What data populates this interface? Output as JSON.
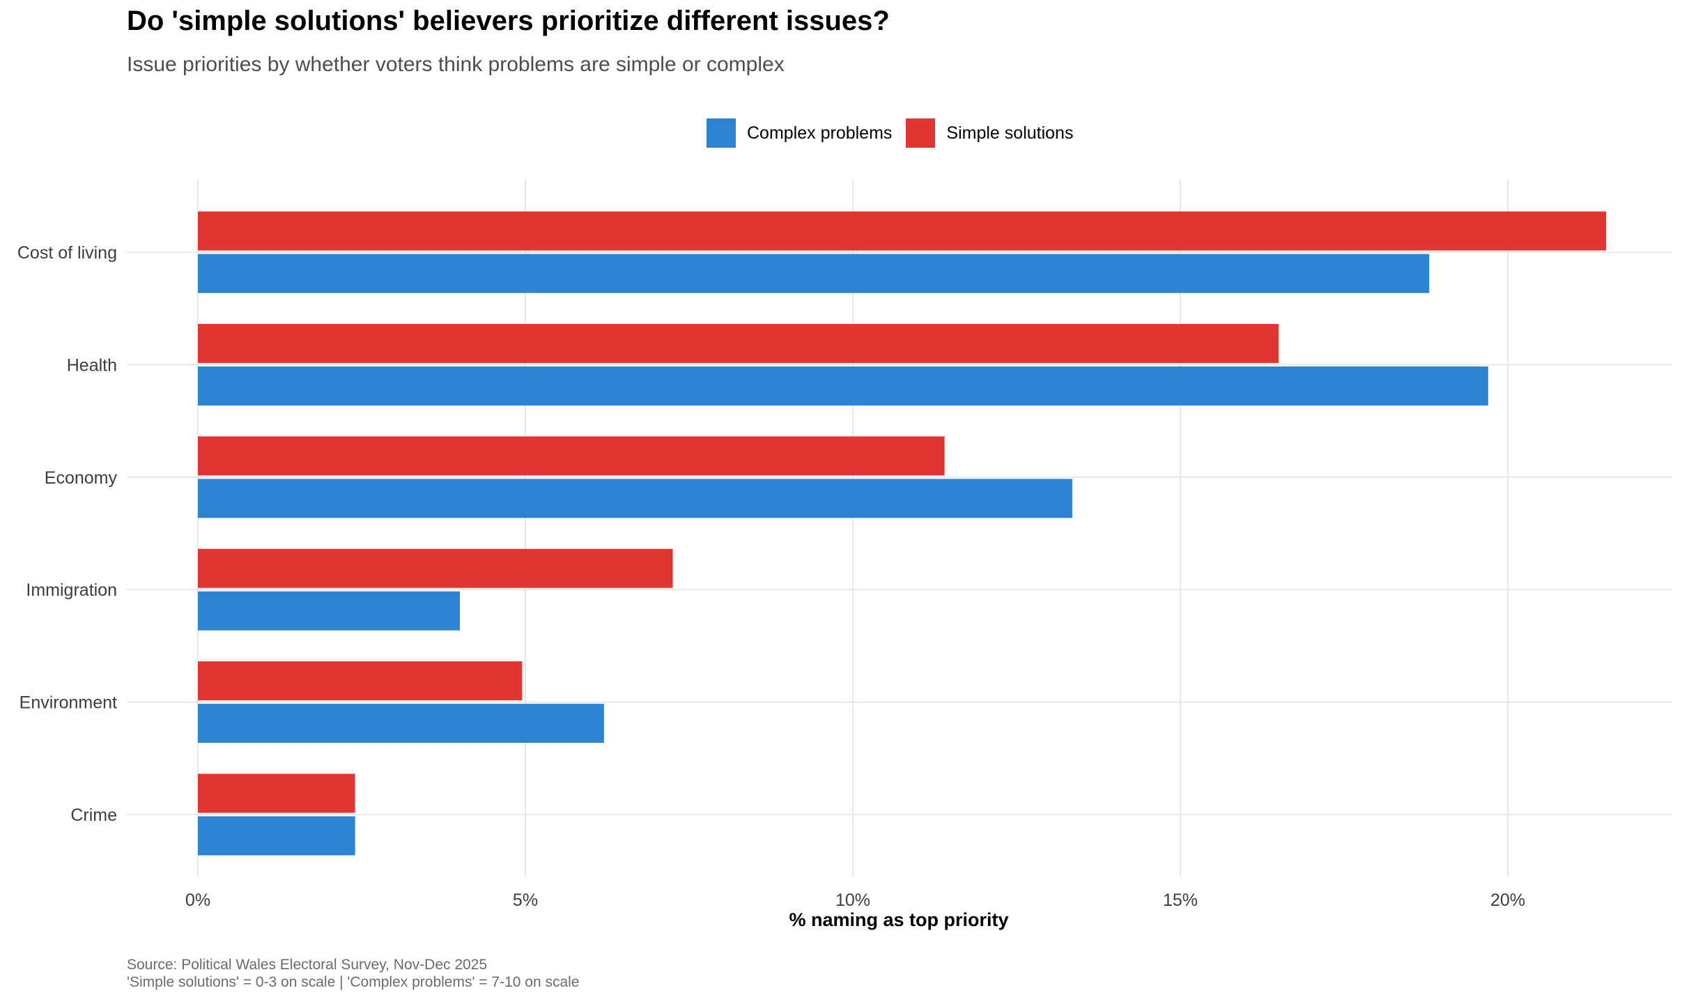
{
  "chart_data": {
    "type": "bar",
    "orientation": "horizontal",
    "title": "Do 'simple solutions' believers prioritize different issues?",
    "subtitle": "Issue priorities by whether voters think problems are simple or complex",
    "xlabel": "% naming as top priority",
    "ylabel": "",
    "xlim": [
      0,
      22.5
    ],
    "x_ticks": [
      0,
      5,
      10,
      15,
      20
    ],
    "x_tick_labels": [
      "0%",
      "5%",
      "10%",
      "15%",
      "20%"
    ],
    "categories": [
      "Cost of living",
      "Health",
      "Economy",
      "Immigration",
      "Environment",
      "Crime"
    ],
    "series": [
      {
        "name": "Simple solutions",
        "color": "#e03531",
        "values": [
          21.5,
          16.5,
          11.4,
          7.25,
          4.95,
          2.4
        ]
      },
      {
        "name": "Complex problems",
        "color": "#2b83d2",
        "values": [
          18.8,
          19.7,
          13.35,
          4.0,
          6.2,
          2.4
        ]
      }
    ],
    "legend": {
      "position": "top",
      "items": [
        {
          "label": "Complex problems",
          "color": "#2b83d2"
        },
        {
          "label": "Simple solutions",
          "color": "#e03531"
        }
      ]
    },
    "grid": true,
    "caption": [
      "Source: Political Wales Electoral Survey, Nov-Dec 2025",
      "'Simple solutions' = 0-3 on scale | 'Complex problems' = 7-10 on scale"
    ]
  }
}
